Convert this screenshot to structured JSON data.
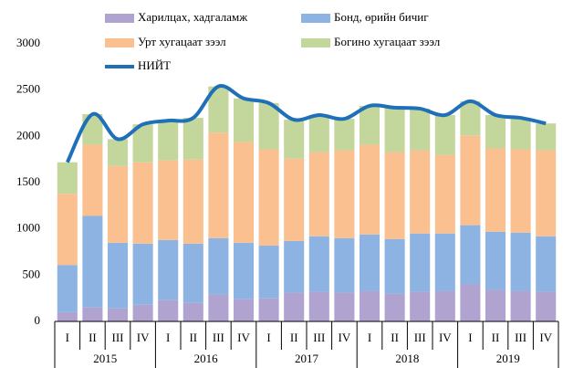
{
  "chart_data": {
    "type": "bar",
    "stacked": true,
    "grid": false,
    "categories": [
      "I",
      "II",
      "III",
      "IV",
      "I",
      "II",
      "III",
      "IV",
      "I",
      "II",
      "III",
      "IV",
      "I",
      "II",
      "III",
      "IV",
      "I",
      "II",
      "III",
      "IV"
    ],
    "years": [
      "2015",
      "2016",
      "2017",
      "2018",
      "2019"
    ],
    "ylim": [
      0,
      3000
    ],
    "yticks": [
      0,
      500,
      1000,
      1500,
      2000,
      2500,
      3000
    ],
    "series": [
      {
        "name": "Харилцах, хадгаламж",
        "color": "#b1a3cf",
        "values": [
          100,
          150,
          140,
          180,
          230,
          200,
          290,
          240,
          250,
          310,
          320,
          310,
          330,
          300,
          320,
          330,
          400,
          340,
          330,
          320
        ]
      },
      {
        "name": "Бонд, өрийн бичиг",
        "color": "#8db3e2",
        "values": [
          510,
          990,
          710,
          660,
          650,
          640,
          610,
          610,
          570,
          560,
          600,
          590,
          610,
          590,
          630,
          620,
          640,
          630,
          630,
          600
        ]
      },
      {
        "name": "Урт хугацаат зээл",
        "color": "#fac090",
        "values": [
          770,
          770,
          830,
          880,
          860,
          910,
          1140,
          1090,
          1040,
          890,
          910,
          950,
          970,
          940,
          900,
          850,
          970,
          900,
          900,
          930
        ]
      },
      {
        "name": "Богино хугацаат зээл",
        "color": "#c3d69b",
        "values": [
          340,
          330,
          290,
          410,
          430,
          450,
          500,
          470,
          500,
          420,
          400,
          340,
          420,
          480,
          450,
          430,
          370,
          360,
          340,
          290
        ]
      },
      {
        "name": "НИЙТ",
        "color": "#1f70b8",
        "type": "line",
        "values": [
          1720,
          2240,
          1970,
          2130,
          2170,
          2200,
          2540,
          2410,
          2360,
          2180,
          2230,
          2190,
          2330,
          2310,
          2300,
          2230,
          2380,
          2230,
          2200,
          2140
        ]
      }
    ]
  }
}
